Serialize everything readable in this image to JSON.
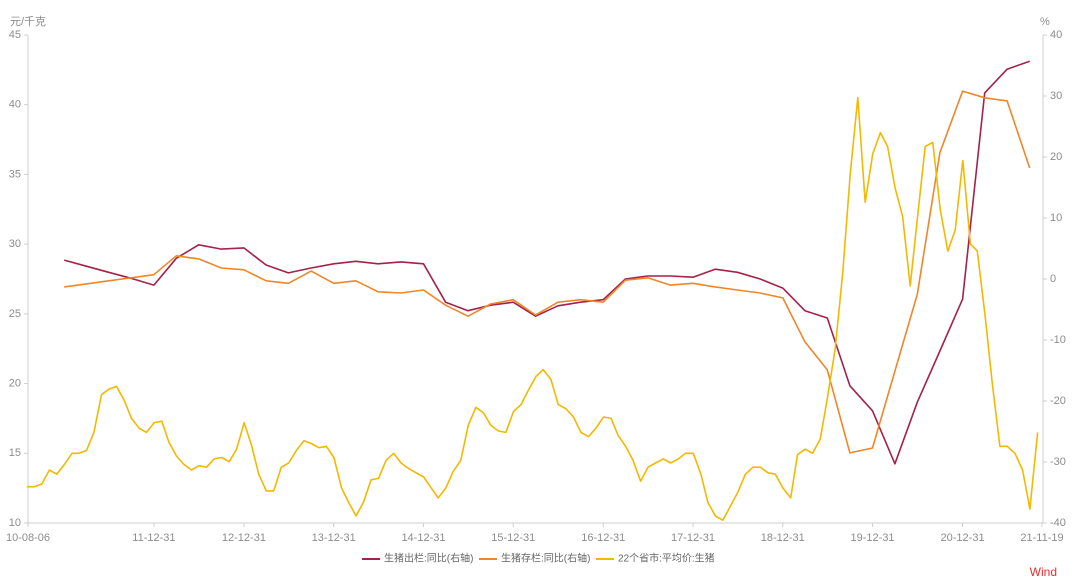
{
  "chart_data": {
    "type": "line",
    "ylabel": "元/千克",
    "y2label": "%",
    "xlim": [
      "2010-08-06",
      "2021-11-19"
    ],
    "xticks": [
      {
        "value": "2010-08-06",
        "label": "10-08-06"
      },
      {
        "value": "2011-12-31",
        "label": "11-12-31"
      },
      {
        "value": "2012-12-31",
        "label": "12-12-31"
      },
      {
        "value": "2013-12-31",
        "label": "13-12-31"
      },
      {
        "value": "2014-12-31",
        "label": "14-12-31"
      },
      {
        "value": "2015-12-31",
        "label": "15-12-31"
      },
      {
        "value": "2016-12-31",
        "label": "16-12-31"
      },
      {
        "value": "2017-12-31",
        "label": "17-12-31"
      },
      {
        "value": "2018-12-31",
        "label": "18-12-31"
      },
      {
        "value": "2019-12-31",
        "label": "19-12-31"
      },
      {
        "value": "2020-12-31",
        "label": "20-12-31"
      },
      {
        "value": "2021-11-19",
        "label": "21-11-19"
      }
    ],
    "ylim": [
      10,
      45
    ],
    "yticks": [
      10,
      15,
      20,
      25,
      30,
      35,
      40,
      45
    ],
    "y2lim": [
      -40,
      40
    ],
    "y2ticks": [
      -40,
      -30,
      -20,
      -10,
      0,
      10,
      20,
      30,
      40
    ],
    "source": "Wind",
    "series": [
      {
        "name": "生猪出栏:同比(右轴)",
        "color": "#a3224a",
        "axis": "y2",
        "x": [
          "2010-12-31",
          "2011-03-31",
          "2011-06-30",
          "2011-09-30",
          "2011-12-31",
          "2012-03-31",
          "2012-06-30",
          "2012-09-30",
          "2012-12-31",
          "2013-03-31",
          "2013-06-30",
          "2013-09-30",
          "2013-12-31",
          "2014-03-31",
          "2014-06-30",
          "2014-09-30",
          "2014-12-31",
          "2015-03-31",
          "2015-06-30",
          "2015-09-30",
          "2015-12-31",
          "2016-03-31",
          "2016-06-30",
          "2016-09-30",
          "2016-12-31",
          "2017-03-31",
          "2017-06-30",
          "2017-09-30",
          "2017-12-31",
          "2018-03-31",
          "2018-06-30",
          "2018-09-30",
          "2018-12-31",
          "2019-03-31",
          "2019-06-30",
          "2019-09-30",
          "2019-12-31",
          "2020-03-31",
          "2020-06-30",
          "2020-09-30",
          "2020-12-31",
          "2021-03-31",
          "2021-06-30",
          "2021-09-30"
        ],
        "values": [
          3.1,
          2.1,
          1.1,
          0.1,
          -1,
          3.4,
          5.6,
          4.9,
          5.1,
          2.3,
          1.0,
          1.8,
          2.5,
          2.9,
          2.5,
          2.8,
          2.5,
          -3.8,
          -5.2,
          -4.3,
          -3.8,
          -6.1,
          -4.4,
          -3.8,
          -3.4,
          0,
          0.5,
          0.5,
          0.3,
          1.6,
          1.1,
          0,
          -1.5,
          -5.2,
          -6.4,
          -17.5,
          -21.6,
          -30.3,
          -20.2,
          -11.8,
          -3.3,
          30.5,
          34.4,
          35.7
        ]
      },
      {
        "name": "生猪存栏:同比(右轴)",
        "color": "#f0862a",
        "axis": "y2",
        "x": [
          "2010-12-31",
          "2011-03-31",
          "2011-06-30",
          "2011-09-30",
          "2011-12-31",
          "2012-03-31",
          "2012-06-30",
          "2012-09-30",
          "2012-12-31",
          "2013-03-31",
          "2013-06-30",
          "2013-09-30",
          "2013-12-31",
          "2014-03-31",
          "2014-06-30",
          "2014-09-30",
          "2014-12-31",
          "2015-03-31",
          "2015-06-30",
          "2015-09-30",
          "2015-12-31",
          "2016-03-31",
          "2016-06-30",
          "2016-09-30",
          "2016-12-31",
          "2017-03-31",
          "2017-06-30",
          "2017-09-30",
          "2017-12-31",
          "2018-03-31",
          "2018-06-30",
          "2018-09-30",
          "2018-12-31",
          "2019-03-31",
          "2019-06-30",
          "2019-09-30",
          "2019-12-31",
          "2020-03-31",
          "2020-06-30",
          "2020-09-30",
          "2020-12-31",
          "2021-03-31",
          "2021-06-30",
          "2021-09-30"
        ],
        "values": [
          -1.3,
          -0.8,
          -0.3,
          0.2,
          0.7,
          3.8,
          3.3,
          1.8,
          1.5,
          -0.3,
          -0.7,
          1.3,
          -0.7,
          -0.3,
          -2.1,
          -2.3,
          -1.8,
          -4.3,
          -6.1,
          -4.1,
          -3.4,
          -5.9,
          -3.8,
          -3.4,
          -3.8,
          -0.2,
          0.2,
          -1.0,
          -0.7,
          -1.3,
          -1.8,
          -2.3,
          -3.1,
          -10.3,
          -14.9,
          -28.5,
          -27.7,
          -15.1,
          -2.5,
          20.7,
          30.8,
          29.7,
          29.2,
          18.2
        ]
      },
      {
        "name": "22个省市:平均价:生猪",
        "color": "#f5b800",
        "axis": "y",
        "x": [
          "2010-08",
          "2010-09",
          "2010-10",
          "2010-11",
          "2010-12",
          "2011-01",
          "2011-02",
          "2011-03",
          "2011-04",
          "2011-05",
          "2011-06",
          "2011-07",
          "2011-08",
          "2011-09",
          "2011-10",
          "2011-11",
          "2011-12",
          "2012-01",
          "2012-02",
          "2012-03",
          "2012-04",
          "2012-05",
          "2012-06",
          "2012-07",
          "2012-08",
          "2012-09",
          "2012-10",
          "2012-11",
          "2012-12",
          "2013-01",
          "2013-02",
          "2013-03",
          "2013-04",
          "2013-05",
          "2013-06",
          "2013-07",
          "2013-08",
          "2013-09",
          "2013-10",
          "2013-11",
          "2013-12",
          "2014-01",
          "2014-02",
          "2014-03",
          "2014-04",
          "2014-05",
          "2014-06",
          "2014-07",
          "2014-08",
          "2014-09",
          "2014-10",
          "2014-11",
          "2014-12",
          "2015-01",
          "2015-02",
          "2015-03",
          "2015-04",
          "2015-05",
          "2015-06",
          "2015-07",
          "2015-08",
          "2015-09",
          "2015-10",
          "2015-11",
          "2015-12",
          "2016-01",
          "2016-02",
          "2016-03",
          "2016-04",
          "2016-05",
          "2016-06",
          "2016-07",
          "2016-08",
          "2016-09",
          "2016-10",
          "2016-11",
          "2016-12",
          "2017-01",
          "2017-02",
          "2017-03",
          "2017-04",
          "2017-05",
          "2017-06",
          "2017-07",
          "2017-08",
          "2017-09",
          "2017-10",
          "2017-11",
          "2017-12",
          "2018-01",
          "2018-02",
          "2018-03",
          "2018-04",
          "2018-05",
          "2018-06",
          "2018-07",
          "2018-08",
          "2018-09",
          "2018-10",
          "2018-11",
          "2018-12",
          "2019-01",
          "2019-02",
          "2019-03",
          "2019-04",
          "2019-05",
          "2019-06",
          "2019-07",
          "2019-08",
          "2019-09",
          "2019-10",
          "2019-11",
          "2019-12",
          "2020-01",
          "2020-02",
          "2020-03",
          "2020-04",
          "2020-05",
          "2020-06",
          "2020-07",
          "2020-08",
          "2020-09",
          "2020-10",
          "2020-11",
          "2020-12",
          "2021-01",
          "2021-02",
          "2021-03",
          "2021-04",
          "2021-05",
          "2021-06",
          "2021-07",
          "2021-08",
          "2021-09",
          "2021-10",
          "2021-11"
        ],
        "values": [
          12.6,
          12.6,
          12.8,
          13.8,
          13.5,
          14.2,
          15.0,
          15.0,
          15.2,
          16.5,
          19.2,
          19.6,
          19.8,
          18.8,
          17.5,
          16.8,
          16.5,
          17.2,
          17.3,
          15.8,
          14.8,
          14.2,
          13.8,
          14.1,
          14.0,
          14.6,
          14.7,
          14.4,
          15.3,
          17.2,
          15.5,
          13.5,
          12.3,
          12.3,
          14.0,
          14.3,
          15.2,
          15.9,
          15.7,
          15.4,
          15.5,
          14.7,
          12.5,
          11.5,
          10.5,
          11.5,
          13.1,
          13.2,
          14.5,
          15.0,
          14.3,
          13.9,
          13.6,
          13.3,
          12.5,
          11.8,
          12.5,
          13.7,
          14.5,
          17.0,
          18.3,
          17.9,
          17.0,
          16.6,
          16.5,
          18.0,
          18.5,
          19.5,
          20.5,
          21.0,
          20.3,
          18.5,
          18.2,
          17.6,
          16.5,
          16.2,
          16.8,
          17.6,
          17.5,
          16.3,
          15.5,
          14.5,
          13.0,
          14.0,
          14.3,
          14.6,
          14.3,
          14.6,
          15.0,
          15.0,
          13.5,
          11.5,
          10.5,
          10.2,
          11.2,
          12.2,
          13.5,
          14.0,
          14.0,
          13.6,
          13.5,
          12.5,
          11.8,
          14.9,
          15.3,
          15.0,
          16.0,
          19.0,
          22.5,
          28.0,
          35.0,
          40.5,
          33.0,
          36.5,
          38.0,
          37.0,
          34.0,
          32.0,
          27.0,
          32.0,
          37.0,
          37.3,
          32.5,
          29.5,
          31.0,
          36.0,
          30.0,
          29.5,
          25.0,
          20.0,
          15.5,
          15.5,
          15.0,
          13.8,
          11.0,
          16.5
        ]
      }
    ]
  }
}
